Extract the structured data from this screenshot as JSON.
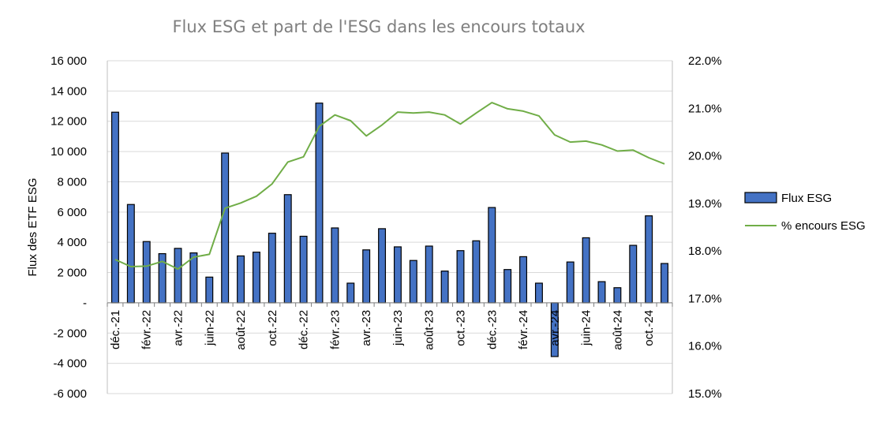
{
  "chart_data": {
    "type": "bar+line",
    "title": "Flux ESG et part de l'ESG dans les encours totaux",
    "ylabel": "Flux des ETF ESG",
    "y_left": {
      "lim": [
        -6000,
        16000
      ],
      "ticks": [
        -6000,
        -4000,
        -2000,
        0,
        2000,
        4000,
        6000,
        8000,
        10000,
        12000,
        14000,
        16000
      ],
      "tick_labels": [
        "-6 000",
        "-4 000",
        "-2 000",
        "-",
        "2 000",
        "4 000",
        "6 000",
        "8 000",
        "10 000",
        "12 000",
        "14 000",
        "16 000"
      ]
    },
    "y_right": {
      "lim": [
        15.0,
        22.0
      ],
      "ticks": [
        15.0,
        16.0,
        17.0,
        18.0,
        19.0,
        20.0,
        21.0,
        22.0
      ],
      "tick_labels": [
        "15.0%",
        "16.0%",
        "17.0%",
        "18.0%",
        "19.0%",
        "20.0%",
        "21.0%",
        "22.0%"
      ]
    },
    "x_tick_labels": [
      "déc.-21",
      "févr.-22",
      "avr.-22",
      "juin-22",
      "août-22",
      "oct.-22",
      "déc.-22",
      "févr.-23",
      "avr.-23",
      "juin-23",
      "août-23",
      "oct.-23",
      "déc.-23",
      "févr.-24",
      "avr.-24",
      "juin-24",
      "août-24",
      "oct.-24"
    ],
    "grid": true,
    "legend": "right",
    "series": [
      {
        "name": "Flux ESG",
        "type": "bar",
        "axis": "left",
        "color": "#4472c4",
        "values": [
          12600,
          6500,
          4050,
          3250,
          3600,
          3300,
          1700,
          9900,
          3100,
          3350,
          4600,
          7150,
          4400,
          13200,
          4950,
          1300,
          3500,
          4900,
          3700,
          2800,
          3750,
          2100,
          3450,
          4100,
          6300,
          2200,
          3050,
          1300,
          -3550,
          2700,
          4300,
          1400,
          1000,
          3800,
          5750,
          2600
        ]
      },
      {
        "name": "% encours ESG",
        "type": "line",
        "axis": "right",
        "color": "#70ad47",
        "values": [
          17.82,
          17.67,
          17.68,
          17.78,
          17.62,
          17.87,
          17.93,
          18.9,
          19.01,
          19.15,
          19.41,
          19.87,
          19.98,
          20.62,
          20.86,
          20.74,
          20.42,
          20.65,
          20.92,
          20.9,
          20.92,
          20.86,
          20.67,
          20.9,
          21.12,
          20.99,
          20.94,
          20.84,
          20.44,
          20.29,
          20.31,
          20.23,
          20.1,
          20.12,
          19.96,
          19.83
        ]
      }
    ]
  }
}
